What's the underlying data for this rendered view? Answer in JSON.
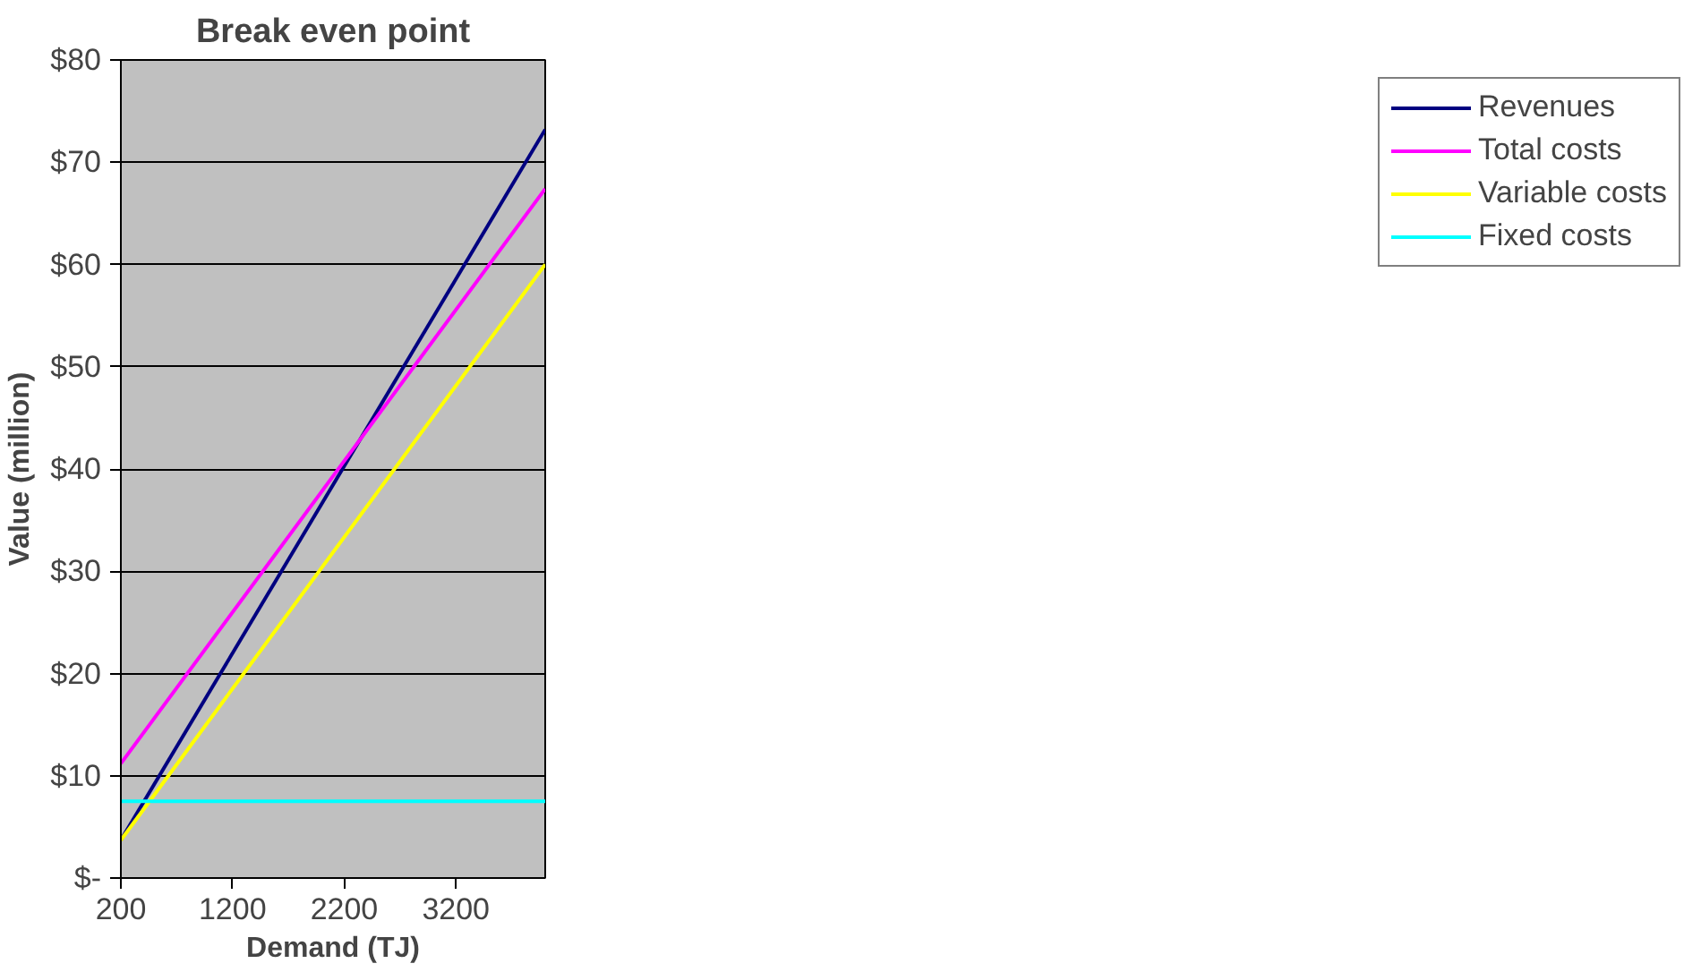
{
  "chart_data": {
    "type": "line",
    "title": "Break even point",
    "xlabel": "Demand (TJ)",
    "ylabel": "Value (million)",
    "xlim": [
      200,
      4000
    ],
    "xticks": [
      200,
      1200,
      2200,
      3200
    ],
    "ylim": [
      0,
      80
    ],
    "yticks": [
      {
        "value": 0,
        "label": "$-"
      },
      {
        "value": 10,
        "label": "$10"
      },
      {
        "value": 20,
        "label": "$20"
      },
      {
        "value": 30,
        "label": "$30"
      },
      {
        "value": 40,
        "label": "$40"
      },
      {
        "value": 50,
        "label": "$50"
      },
      {
        "value": 60,
        "label": "$60"
      },
      {
        "value": 70,
        "label": "$70"
      },
      {
        "value": 80,
        "label": "$80"
      }
    ],
    "grid": "y",
    "legend": "right",
    "marker": "none",
    "line_style": "solid",
    "x": [
      200,
      4000
    ],
    "series": [
      {
        "name": "Revenues",
        "color": "#000080",
        "values": [
          3.7,
          73.2
        ]
      },
      {
        "name": "Total costs",
        "color": "#ff00ff",
        "values": [
          11.2,
          67.4
        ]
      },
      {
        "name": "Variable costs",
        "color": "#ffff00",
        "values": [
          3.7,
          60
        ]
      },
      {
        "name": "Fixed costs",
        "color": "#00ffff",
        "values": [
          7.5,
          7.5
        ]
      }
    ]
  }
}
